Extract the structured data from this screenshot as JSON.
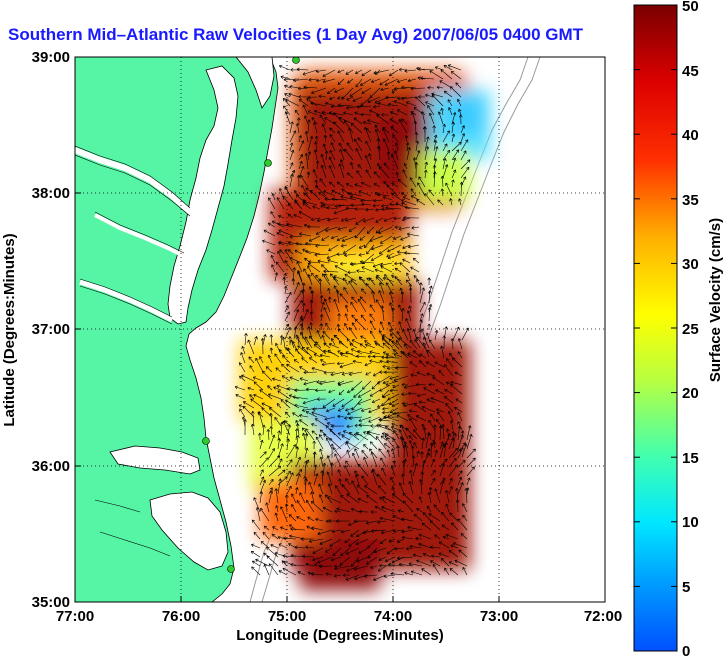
{
  "title": "Southern Mid–Atlantic Raw Velocities (1 Day Avg) 2007/06/05 0400 GMT",
  "x_axis": {
    "label": "Longitude (Degrees:Minutes)",
    "ticks": [
      "77:00",
      "76:00",
      "75:00",
      "74:00",
      "73:00",
      "72:00"
    ]
  },
  "y_axis": {
    "label": "Latitude (Degrees:Minutes)",
    "ticks": [
      "39:00",
      "38:00",
      "37:00",
      "36:00",
      "35:00"
    ]
  },
  "colorbar": {
    "label": "Surface Velocity (cm/s)",
    "ticks": [
      "50",
      "45",
      "40",
      "35",
      "30",
      "25",
      "20",
      "15",
      "10",
      "5",
      "0"
    ],
    "min": 0,
    "max": 50
  },
  "colors": {
    "land": "#55f5a5",
    "water": "#ffffff",
    "title": "#1a1aff",
    "coast": "#000000",
    "isobath": "#999999",
    "station": "#2ccc2c"
  }
}
